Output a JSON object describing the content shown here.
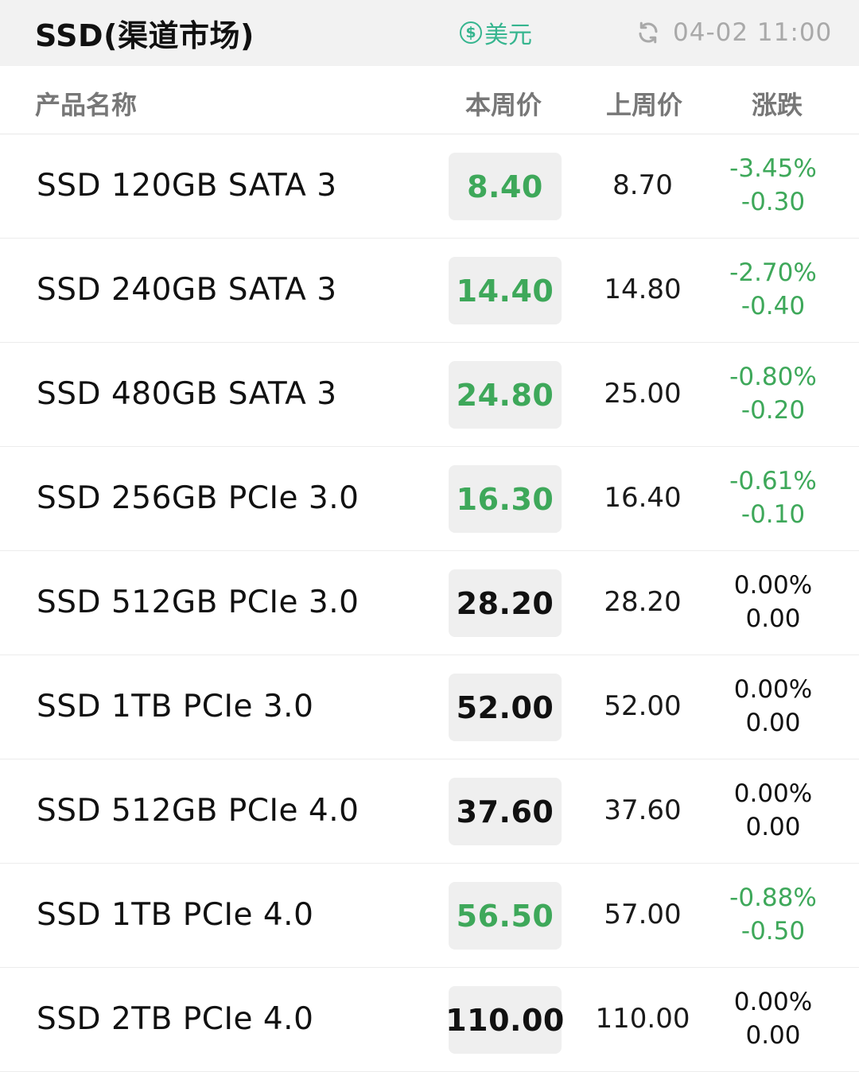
{
  "header": {
    "title": "SSD(渠道市场)",
    "currency_label": "美元",
    "currency_icon": "dollar-circle-icon",
    "refresh_icon": "refresh-icon",
    "timestamp": "04-02 11:00"
  },
  "columns": {
    "name": "产品名称",
    "this_week": "本周价",
    "last_week": "上周价",
    "change": "涨跌"
  },
  "colors": {
    "down": "#3ea85a",
    "flat": "#111111",
    "accent": "#36b58f"
  },
  "rows": [
    {
      "name": "SSD 120GB SATA 3",
      "this_week": "8.40",
      "last_week": "8.70",
      "change_pct": "-3.45%",
      "change_abs": "-0.30",
      "trend": "down"
    },
    {
      "name": "SSD 240GB SATA 3",
      "this_week": "14.40",
      "last_week": "14.80",
      "change_pct": "-2.70%",
      "change_abs": "-0.40",
      "trend": "down"
    },
    {
      "name": "SSD 480GB SATA 3",
      "this_week": "24.80",
      "last_week": "25.00",
      "change_pct": "-0.80%",
      "change_abs": "-0.20",
      "trend": "down"
    },
    {
      "name": "SSD 256GB PCIe 3.0",
      "this_week": "16.30",
      "last_week": "16.40",
      "change_pct": "-0.61%",
      "change_abs": "-0.10",
      "trend": "down"
    },
    {
      "name": "SSD 512GB PCIe 3.0",
      "this_week": "28.20",
      "last_week": "28.20",
      "change_pct": "0.00%",
      "change_abs": "0.00",
      "trend": "flat"
    },
    {
      "name": "SSD 1TB PCIe 3.0",
      "this_week": "52.00",
      "last_week": "52.00",
      "change_pct": "0.00%",
      "change_abs": "0.00",
      "trend": "flat"
    },
    {
      "name": "SSD 512GB PCIe 4.0",
      "this_week": "37.60",
      "last_week": "37.60",
      "change_pct": "0.00%",
      "change_abs": "0.00",
      "trend": "flat"
    },
    {
      "name": "SSD 1TB PCIe 4.0",
      "this_week": "56.50",
      "last_week": "57.00",
      "change_pct": "-0.88%",
      "change_abs": "-0.50",
      "trend": "down"
    },
    {
      "name": "SSD 2TB PCIe 4.0",
      "this_week": "110.00",
      "last_week": "110.00",
      "change_pct": "0.00%",
      "change_abs": "0.00",
      "trend": "flat"
    }
  ]
}
